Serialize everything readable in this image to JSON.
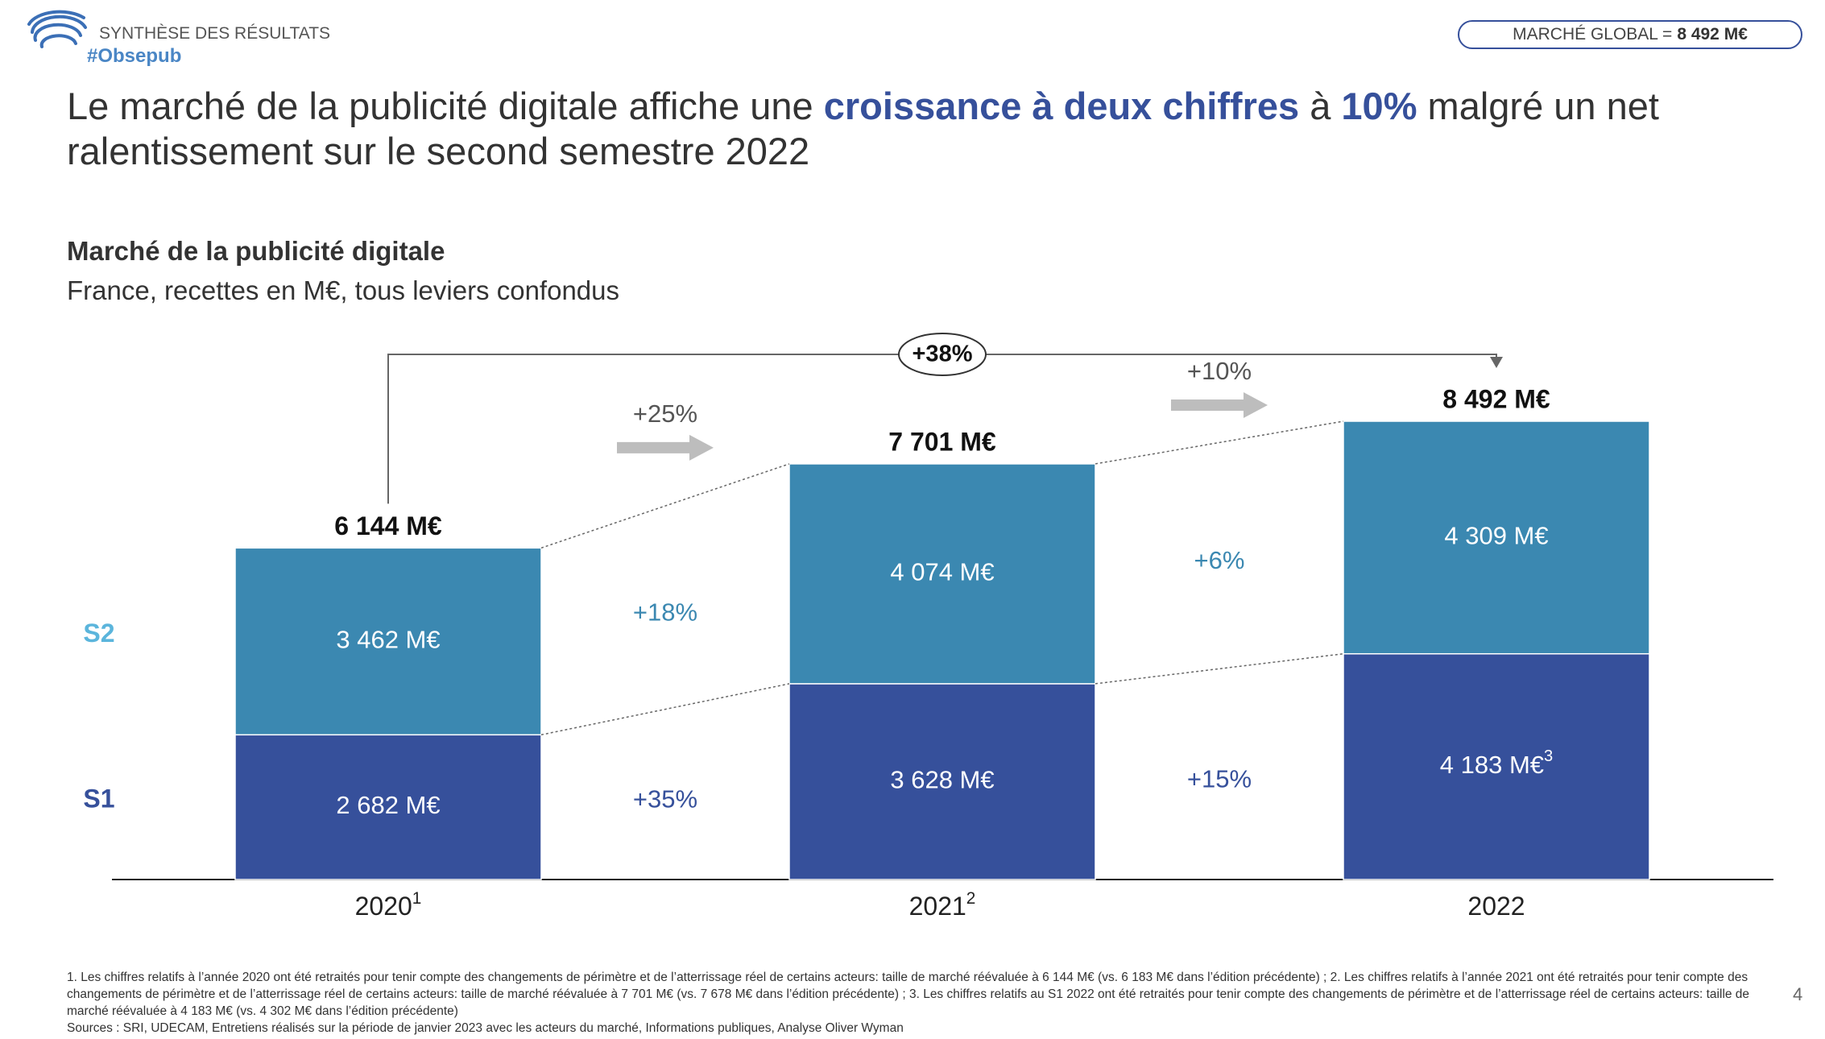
{
  "header": {
    "kicker": "SYNTHÈSE DES RÉSULTATS",
    "tag": "#Obsepub",
    "badge_label": "MARCHÉ GLOBAL =",
    "badge_value": "8 492 M€"
  },
  "title": [
    {
      "text": "Le marché de la publicité digitale affiche une ",
      "emphasis": false
    },
    {
      "text": "croissance à deux chiffres",
      "emphasis": true
    },
    {
      "text": " à ",
      "emphasis": false
    },
    {
      "text": "10%",
      "emphasis": true
    },
    {
      "text": " malgré un net ralentissement sur le second semestre 2022",
      "emphasis": false
    }
  ],
  "chart_data": {
    "type": "stacked-bar",
    "title": "Marché de la publicité digitale",
    "subtitle": "France, recettes en M€, tous leviers confondus",
    "categories": [
      "2020",
      "2021",
      "2022"
    ],
    "category_notes": [
      "1",
      "2",
      null
    ],
    "series": [
      {
        "name": "S1",
        "color": "#36509b",
        "name_color": "#36509b",
        "values": [
          2682,
          3628,
          4183
        ],
        "value_labels": [
          "2 682 M€",
          "3 628 M€",
          "4 183 M€"
        ],
        "value_label_notes": [
          null,
          null,
          "3"
        ],
        "growth_values": [
          35,
          15
        ],
        "growth_labels": [
          "+35%",
          "+15%"
        ]
      },
      {
        "name": "S2",
        "color": "#3b88b1",
        "name_color": "#5bb5dc",
        "values": [
          3462,
          4074,
          4309
        ],
        "value_labels": [
          "3 462 M€",
          "4 074 M€",
          "4 309 M€"
        ],
        "value_label_notes": [
          null,
          null,
          null
        ],
        "growth_values": [
          18,
          6
        ],
        "growth_labels": [
          "+18%",
          "+6%"
        ]
      }
    ],
    "totals": {
      "values": [
        6144,
        7701,
        8492
      ],
      "value_labels": [
        "6 144 M€",
        "7 701 M€",
        "8 492 M€"
      ],
      "growth_values": [
        25,
        10
      ],
      "growth_labels": [
        "+25%",
        "+10%"
      ]
    },
    "overall_growth": {
      "value": 38,
      "label": "+38%"
    }
  },
  "footer": {
    "notes": "1. Les chiffres relatifs à l’année 2020 ont été retraités pour tenir compte des changements de périmètre et de l’atterrissage réel de certains acteurs: taille de marché réévaluée à 6 144 M€ (vs. 6 183 M€ dans l’édition précédente) ; 2. Les chiffres relatifs à l’année 2021 ont été retraités pour tenir compte des changements de périmètre et de l’atterrissage réel de certains acteurs: taille de marché réévaluée à 7 701 M€ (vs. 7 678 M€ dans l’édition précédente) ; 3. Les chiffres relatifs au S1 2022 ont été retraités pour tenir compte des changements de périmètre et de l’atterrissage réel de certains acteurs: taille de marché réévaluée à 4 183 M€ (vs. 4 302 M€ dans l’édition précédente)",
    "sources": "Sources : SRI, UDECAM, Entretiens réalisés sur la période de janvier 2023 avec les acteurs du marché, Informations publiques, Analyse Oliver Wyman",
    "page": "4"
  }
}
